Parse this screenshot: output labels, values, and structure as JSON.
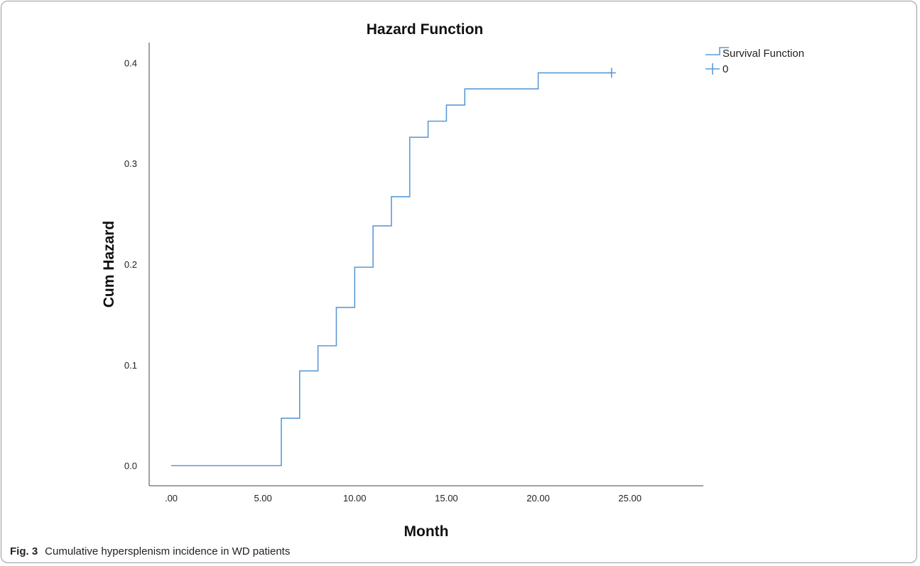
{
  "caption": {
    "label": "Fig. 3",
    "text": "Cumulative hypersplenism incidence in WD patients"
  },
  "chart_data": {
    "type": "line",
    "step": true,
    "title": "Hazard Function",
    "xlabel": "Month",
    "ylabel": "Cum Hazard",
    "xlim": [
      -1.2,
      29
    ],
    "ylim": [
      -0.02,
      0.42
    ],
    "x_ticks": [
      0,
      5,
      10,
      15,
      20,
      25
    ],
    "x_tick_labels": [
      ".00",
      "5.00",
      "10.00",
      "15.00",
      "20.00",
      "25.00"
    ],
    "y_ticks": [
      0.0,
      0.1,
      0.2,
      0.3,
      0.4
    ],
    "y_tick_labels": [
      "0.0",
      "0.1",
      "0.2",
      "0.3",
      "0.4"
    ],
    "grid": false,
    "legend_position": "top-right",
    "color": "#5b9bd5",
    "series": [
      {
        "name": "Survival Function",
        "x": [
          0,
          6,
          7,
          8,
          9,
          10,
          11,
          12,
          13,
          14,
          15,
          16,
          20,
          24
        ],
        "y": [
          0.0,
          0.047,
          0.094,
          0.119,
          0.157,
          0.197,
          0.238,
          0.267,
          0.326,
          0.342,
          0.358,
          0.374,
          0.39,
          0.39
        ]
      }
    ],
    "censored": {
      "name": "0",
      "x": [
        24
      ],
      "y": [
        0.39
      ]
    }
  }
}
